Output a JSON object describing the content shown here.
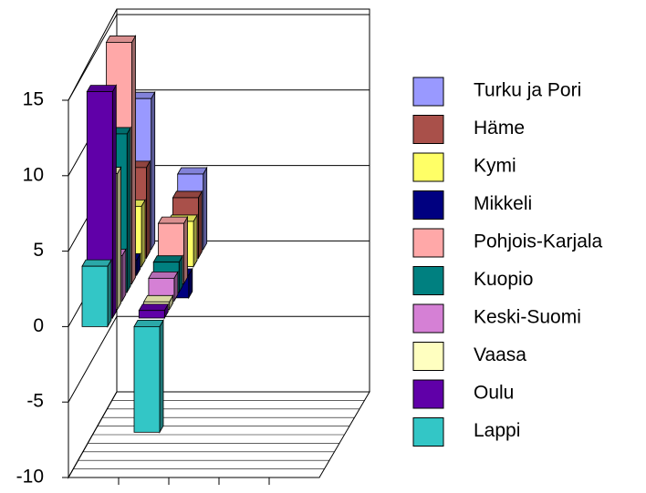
{
  "chart_data": {
    "type": "bar",
    "categories": [
      null,
      null
    ],
    "series": [
      {
        "name": "Turku ja Pori",
        "color": "#9999ff",
        "values": [
          10,
          5
        ]
      },
      {
        "name": "Häme",
        "color": "#a9504a",
        "values": [
          6,
          4
        ]
      },
      {
        "name": "Kymi",
        "color": "#ffff66",
        "values": [
          4,
          3
        ]
      },
      {
        "name": "Mikkeli",
        "color": "#000080",
        "values": [
          1,
          -1.5
        ]
      },
      {
        "name": "Pohjois-Karjala",
        "color": "#ffa8a8",
        "values": [
          16,
          4
        ]
      },
      {
        "name": "Kuopio",
        "color": "#008080",
        "values": [
          10.5,
          2
        ]
      },
      {
        "name": "Keski-Suomi",
        "color": "#d580d5",
        "values": [
          3,
          1.5
        ]
      },
      {
        "name": "Vaasa",
        "color": "#ffffc0",
        "values": [
          9,
          0.5
        ]
      },
      {
        "name": "Oulu",
        "color": "#6000a8",
        "values": [
          15,
          0.5
        ]
      },
      {
        "name": "Lappi",
        "color": "#33c6c6",
        "values": [
          4,
          -7
        ]
      }
    ],
    "ylim": [
      -10,
      15
    ],
    "yticks": [
      -10,
      -5,
      0,
      5,
      10,
      15
    ],
    "grid": true,
    "legend": "right"
  }
}
